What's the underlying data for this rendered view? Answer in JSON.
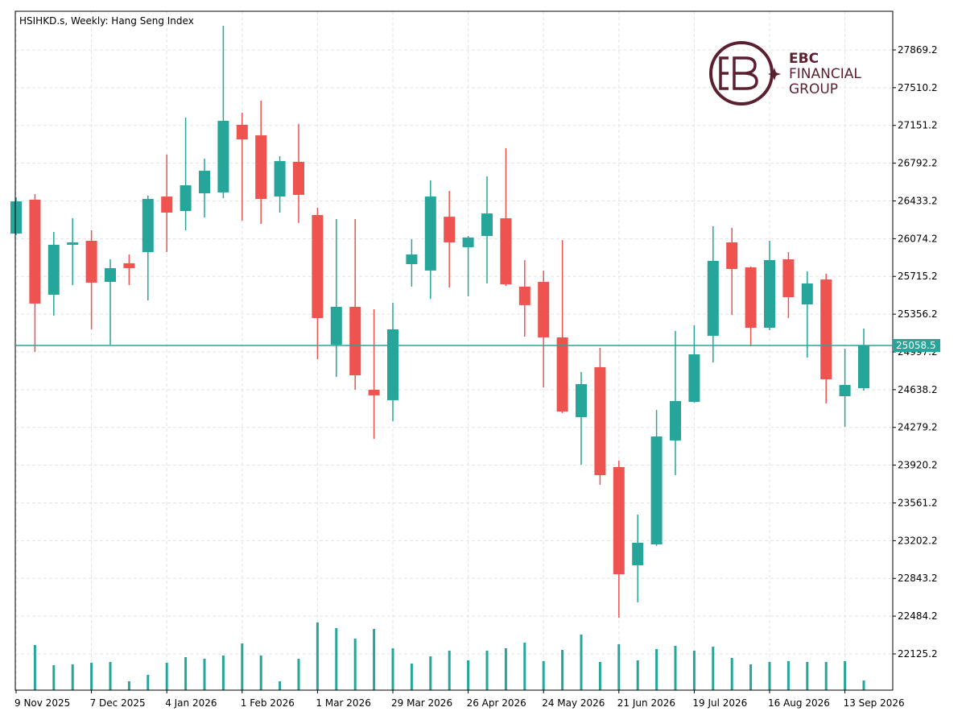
{
  "chart_data": {
    "type": "candlestick",
    "title": "HSIHKD.s, Weekly:  Hang Seng Index",
    "categories": [
      "9 Nov 2025",
      null,
      null,
      null,
      "7 Dec 2025",
      null,
      null,
      null,
      "4 Jan 2026",
      null,
      null,
      null,
      "1 Feb 2026",
      null,
      null,
      null,
      "1 Mar 2026",
      null,
      null,
      null,
      "29 Mar 2026",
      null,
      null,
      null,
      "26 Apr 2026",
      null,
      null,
      null,
      "24 May 2026",
      null,
      null,
      null,
      "21 Jun 2026",
      null,
      null,
      null,
      "19 Jul 2026",
      null,
      null,
      null,
      "16 Aug 2026",
      null,
      null,
      null,
      "13 Sep 2026",
      null
    ],
    "open": [
      26123,
      26445,
      25541,
      26016,
      26054,
      25663,
      25840,
      25947,
      26475,
      26337,
      26506,
      26514,
      27157,
      27057,
      26475,
      26805,
      26299,
      25066,
      25426,
      24637,
      24538,
      25832,
      25771,
      26283,
      25993,
      26100,
      26268,
      25618,
      25663,
      25135,
      24377,
      24852,
      23902,
      22968,
      23167,
      24155,
      24522,
      25150,
      26039,
      25801,
      25227,
      25878,
      25449,
      25686,
      24576,
      24652
    ],
    "high": [
      26468,
      26498,
      26138,
      26269,
      26154,
      25878,
      25924,
      26483,
      26874,
      27226,
      26835,
      28099,
      27272,
      27387,
      26858,
      27165,
      26368,
      26261,
      26261,
      25403,
      25464,
      26069,
      26629,
      26529,
      26100,
      26667,
      26935,
      25870,
      25771,
      26062,
      24806,
      25036,
      23963,
      23450,
      24446,
      25196,
      25250,
      26192,
      26177,
      25809,
      26054,
      25947,
      25763,
      25740,
      25028,
      25219
    ],
    "low": [
      26108,
      24997,
      25342,
      25633,
      25212,
      25066,
      25633,
      25487,
      25947,
      26154,
      26276,
      26460,
      26246,
      26215,
      26322,
      26223,
      24928,
      24760,
      24637,
      24170,
      24338,
      25618,
      25502,
      25610,
      25526,
      25648,
      25625,
      25143,
      24660,
      24415,
      23925,
      23733,
      22470,
      22615,
      23152,
      23825,
      24514,
      24897,
      25349,
      25051,
      25204,
      25319,
      24943,
      24507,
      24285,
      24629
    ],
    "close": [
      26429,
      25457,
      26016,
      26039,
      25656,
      25794,
      25794,
      26452,
      26322,
      26582,
      26720,
      27195,
      27019,
      26452,
      26812,
      26491,
      25319,
      25426,
      24775,
      24584,
      25212,
      25924,
      26475,
      26039,
      26085,
      26314,
      25640,
      25442,
      25135,
      24430,
      24691,
      23825,
      22883,
      23182,
      24193,
      24530,
      24974,
      25863,
      25786,
      25227,
      25871,
      25518,
      25648,
      24737,
      24683,
      25058.5
    ],
    "volume": [
      null,
      56,
      31,
      32,
      34,
      35,
      11,
      19,
      34,
      41,
      39,
      43,
      58,
      43,
      11,
      39,
      84,
      77,
      64,
      76,
      52,
      33,
      42,
      49,
      37,
      49,
      52,
      59,
      36,
      50,
      69,
      35,
      57,
      37,
      51,
      55,
      49,
      54,
      40,
      32,
      35,
      36,
      35,
      35,
      36,
      12
    ],
    "up_color": "#26a69a",
    "down_color": "#ef5350",
    "volume_color": "#26a69a",
    "ylim": [
      21780.5,
      28236.8
    ],
    "yticks": [
      27869.2,
      27510.2,
      27151.2,
      26792.2,
      26433.2,
      26074.2,
      25715.2,
      25356.2,
      24997.2,
      24638.2,
      24279.2,
      23920.2,
      23561.2,
      23202.2,
      22843.2,
      22484.2,
      22125.2
    ],
    "current_price": 25058.5,
    "grid": true
  },
  "logo": {
    "line1": "EBC",
    "line2": "FINANCIAL",
    "line3": "GROUP"
  }
}
